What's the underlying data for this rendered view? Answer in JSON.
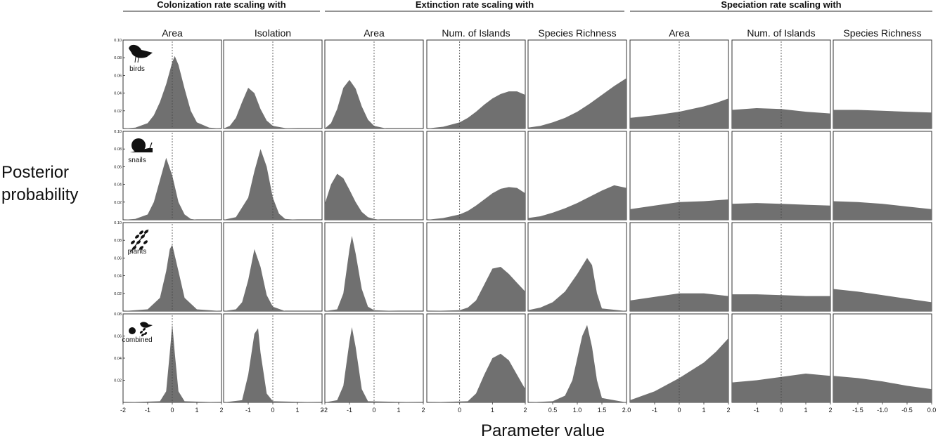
{
  "y_axis_label": [
    "Posterior",
    "probability"
  ],
  "x_axis_label": "Parameter value",
  "groups": [
    {
      "label": "Colonization rate scaling with",
      "columns": [
        0,
        1
      ]
    },
    {
      "label": "Extinction rate scaling with",
      "columns": [
        2,
        3,
        4
      ]
    },
    {
      "label": "Speciation rate scaling with",
      "columns": [
        5,
        6,
        7
      ]
    }
  ],
  "columns": [
    {
      "label": "Area",
      "xlim": [
        -2,
        2
      ],
      "ticks": [
        "-2",
        "-1",
        "0",
        "1",
        "2"
      ],
      "tick_values": [
        -2,
        -1,
        0,
        1,
        2
      ],
      "ref": 0
    },
    {
      "label": "Isolation",
      "xlim": [
        -2,
        2
      ],
      "ticks": [
        "-1",
        "0",
        "1",
        "2"
      ],
      "tick_values": [
        -1,
        0,
        1,
        2
      ],
      "ref": 0
    },
    {
      "label": "Area",
      "xlim": [
        -2,
        2
      ],
      "ticks": [
        "-2",
        "-1",
        "0",
        "1",
        "2"
      ],
      "tick_values": [
        -2,
        -1,
        0,
        1,
        2
      ],
      "ref": 0
    },
    {
      "label": "Num. of Islands",
      "xlim": [
        -1,
        2
      ],
      "ticks": [
        "0",
        "1",
        "2"
      ],
      "tick_values": [
        0,
        1,
        2
      ],
      "ref": 0
    },
    {
      "label": "Species Richness",
      "xlim": [
        0,
        2
      ],
      "ticks": [
        "0.5",
        "1.0",
        "1.5",
        "2.0"
      ],
      "tick_values": [
        0.5,
        1.0,
        1.5,
        2.0
      ],
      "ref": null
    },
    {
      "label": "Area",
      "xlim": [
        -2,
        2
      ],
      "ticks": [
        "-1",
        "0",
        "1",
        "2"
      ],
      "tick_values": [
        -1,
        0,
        1,
        2
      ],
      "ref": 0
    },
    {
      "label": "Num. of Islands",
      "xlim": [
        -2,
        2
      ],
      "ticks": [
        "-1",
        "0",
        "1",
        "2"
      ],
      "tick_values": [
        -1,
        0,
        1,
        2
      ],
      "ref": 0
    },
    {
      "label": "Species Richness",
      "xlim": [
        -2,
        0
      ],
      "ticks": [
        "-1.5",
        "-1.0",
        "-0.5",
        "0.0"
      ],
      "tick_values": [
        -1.5,
        -1.0,
        -0.5,
        0.0
      ],
      "ref": null
    }
  ],
  "rows": [
    {
      "label": "birds",
      "icon": "bird-icon",
      "yticks": [
        "0.10",
        "0.08",
        "0.06",
        "0.04",
        "0.02"
      ],
      "ytick_values": [
        0.1,
        0.08,
        0.06,
        0.04,
        0.02
      ],
      "ylim": [
        0,
        0.1
      ]
    },
    {
      "label": "snails",
      "icon": "snail-icon",
      "yticks": [
        "0.10",
        "0.08",
        "0.06",
        "0.04",
        "0.02"
      ],
      "ytick_values": [
        0.1,
        0.08,
        0.06,
        0.04,
        0.02
      ],
      "ylim": [
        0,
        0.1
      ]
    },
    {
      "label": "plants",
      "icon": "plant-icon",
      "yticks": [
        "0.10",
        "0.08",
        "0.06",
        "0.04",
        "0.02"
      ],
      "ytick_values": [
        0.1,
        0.08,
        0.06,
        0.04,
        0.02
      ],
      "ylim": [
        0,
        0.1
      ]
    },
    {
      "label": "combined",
      "icon": "combined-icon",
      "yticks": [
        "0.08",
        "0.06",
        "0.04",
        "0.02"
      ],
      "ytick_values": [
        0.08,
        0.06,
        0.04,
        0.02
      ],
      "ylim": [
        0,
        0.08
      ]
    }
  ],
  "chart_data": {
    "type": "area",
    "title": "",
    "xlabel": "Parameter value",
    "ylabel": "Posterior probability",
    "grid": false,
    "fill_color": "#707070",
    "reference_line": "dashed vertical line at 0",
    "panels": [
      {
        "row": 0,
        "col": 0,
        "x": [
          -2.0,
          -1.5,
          -1.0,
          -0.75,
          -0.5,
          -0.25,
          0.0,
          0.1,
          0.25,
          0.5,
          0.75,
          1.0,
          1.5,
          2.0
        ],
        "y": [
          0,
          0.001,
          0.006,
          0.015,
          0.03,
          0.05,
          0.075,
          0.082,
          0.072,
          0.045,
          0.02,
          0.007,
          0.001,
          0
        ]
      },
      {
        "row": 0,
        "col": 1,
        "x": [
          -2.0,
          -1.75,
          -1.5,
          -1.25,
          -1.0,
          -0.75,
          -0.5,
          -0.25,
          0.0,
          0.5,
          1.0,
          2.0
        ],
        "y": [
          0,
          0.003,
          0.012,
          0.03,
          0.046,
          0.04,
          0.022,
          0.009,
          0.003,
          0.0005,
          0,
          0
        ]
      },
      {
        "row": 0,
        "col": 2,
        "x": [
          -2.0,
          -1.75,
          -1.5,
          -1.25,
          -1.0,
          -0.75,
          -0.5,
          -0.25,
          0.0,
          0.5,
          1.0,
          2.0
        ],
        "y": [
          0,
          0.006,
          0.022,
          0.046,
          0.055,
          0.045,
          0.025,
          0.01,
          0.003,
          0,
          0,
          0
        ]
      },
      {
        "row": 0,
        "col": 3,
        "x": [
          -1.0,
          -0.5,
          0.0,
          0.25,
          0.5,
          0.75,
          1.0,
          1.25,
          1.5,
          1.75,
          2.0
        ],
        "y": [
          0,
          0.002,
          0.007,
          0.012,
          0.019,
          0.027,
          0.034,
          0.039,
          0.042,
          0.042,
          0.038
        ]
      },
      {
        "row": 0,
        "col": 4,
        "x": [
          0.0,
          0.25,
          0.5,
          0.75,
          1.0,
          1.25,
          1.5,
          1.75,
          2.0
        ],
        "y": [
          0.001,
          0.003,
          0.007,
          0.012,
          0.019,
          0.028,
          0.038,
          0.048,
          0.057
        ]
      },
      {
        "row": 0,
        "col": 5,
        "x": [
          -2.0,
          -1.0,
          0.0,
          1.0,
          1.5,
          2.0
        ],
        "y": [
          0.012,
          0.015,
          0.019,
          0.025,
          0.029,
          0.034
        ]
      },
      {
        "row": 0,
        "col": 6,
        "x": [
          -2.0,
          -1.0,
          0.0,
          1.0,
          2.0
        ],
        "y": [
          0.021,
          0.023,
          0.022,
          0.019,
          0.017
        ]
      },
      {
        "row": 0,
        "col": 7,
        "x": [
          -2.0,
          -1.5,
          -1.0,
          -0.5,
          0.0
        ],
        "y": [
          0.021,
          0.021,
          0.02,
          0.019,
          0.018
        ]
      },
      {
        "row": 1,
        "col": 0,
        "x": [
          -2.0,
          -1.5,
          -1.0,
          -0.75,
          -0.5,
          -0.25,
          0.0,
          0.25,
          0.5,
          0.75,
          1.0,
          2.0
        ],
        "y": [
          0,
          0.001,
          0.006,
          0.02,
          0.045,
          0.07,
          0.05,
          0.02,
          0.006,
          0.001,
          0,
          0
        ]
      },
      {
        "row": 1,
        "col": 1,
        "x": [
          -2.0,
          -1.5,
          -1.0,
          -0.75,
          -0.5,
          -0.25,
          0.0,
          0.25,
          0.5,
          1.0,
          2.0
        ],
        "y": [
          0,
          0.003,
          0.025,
          0.055,
          0.08,
          0.06,
          0.025,
          0.007,
          0.001,
          0,
          0
        ]
      },
      {
        "row": 1,
        "col": 2,
        "x": [
          -2.0,
          -1.75,
          -1.5,
          -1.25,
          -1.0,
          -0.75,
          -0.5,
          -0.25,
          0.0,
          0.25,
          0.5,
          1.0,
          2.0
        ],
        "y": [
          0.018,
          0.04,
          0.052,
          0.047,
          0.034,
          0.02,
          0.009,
          0.003,
          0.001,
          0,
          0,
          0,
          0
        ]
      },
      {
        "row": 1,
        "col": 3,
        "x": [
          -1.0,
          -0.5,
          0.0,
          0.25,
          0.5,
          0.75,
          1.0,
          1.25,
          1.5,
          1.75,
          2.0
        ],
        "y": [
          0,
          0.002,
          0.006,
          0.01,
          0.016,
          0.023,
          0.03,
          0.035,
          0.037,
          0.036,
          0.03
        ]
      },
      {
        "row": 1,
        "col": 4,
        "x": [
          0.0,
          0.25,
          0.5,
          0.75,
          1.0,
          1.25,
          1.5,
          1.75,
          2.0
        ],
        "y": [
          0.002,
          0.004,
          0.008,
          0.013,
          0.019,
          0.026,
          0.033,
          0.039,
          0.036
        ]
      },
      {
        "row": 1,
        "col": 5,
        "x": [
          -2.0,
          -1.0,
          0.0,
          1.0,
          2.0
        ],
        "y": [
          0.012,
          0.016,
          0.02,
          0.021,
          0.023
        ]
      },
      {
        "row": 1,
        "col": 6,
        "x": [
          -2.0,
          -1.0,
          0.0,
          1.0,
          2.0
        ],
        "y": [
          0.018,
          0.019,
          0.018,
          0.017,
          0.016
        ]
      },
      {
        "row": 1,
        "col": 7,
        "x": [
          -2.0,
          -1.5,
          -1.0,
          -0.5,
          0.0
        ],
        "y": [
          0.021,
          0.02,
          0.018,
          0.015,
          0.012
        ]
      },
      {
        "row": 2,
        "col": 0,
        "x": [
          -2.0,
          -1.0,
          -0.5,
          -0.25,
          -0.1,
          0.0,
          0.25,
          0.5,
          1.0,
          2.0
        ],
        "y": [
          0,
          0.002,
          0.015,
          0.045,
          0.07,
          0.075,
          0.045,
          0.015,
          0.002,
          0
        ]
      },
      {
        "row": 2,
        "col": 1,
        "x": [
          -2.0,
          -1.5,
          -1.25,
          -1.0,
          -0.75,
          -0.5,
          -0.25,
          0.0,
          0.5,
          1.0,
          2.0
        ],
        "y": [
          0,
          0.002,
          0.01,
          0.035,
          0.07,
          0.05,
          0.018,
          0.005,
          0,
          0,
          0
        ]
      },
      {
        "row": 2,
        "col": 2,
        "x": [
          -2.0,
          -1.5,
          -1.25,
          -1.0,
          -0.9,
          -0.75,
          -0.5,
          -0.25,
          0.0,
          1.0,
          2.0
        ],
        "y": [
          0,
          0.002,
          0.02,
          0.07,
          0.085,
          0.065,
          0.025,
          0.005,
          0.001,
          0,
          0
        ]
      },
      {
        "row": 2,
        "col": 3,
        "x": [
          -1.0,
          0.0,
          0.25,
          0.5,
          0.75,
          1.0,
          1.25,
          1.5,
          1.75,
          2.0
        ],
        "y": [
          0,
          0.001,
          0.004,
          0.012,
          0.03,
          0.048,
          0.05,
          0.042,
          0.032,
          0.022
        ]
      },
      {
        "row": 2,
        "col": 4,
        "x": [
          0.0,
          0.25,
          0.5,
          0.75,
          1.0,
          1.2,
          1.3,
          1.4,
          1.5,
          2.0
        ],
        "y": [
          0.001,
          0.004,
          0.01,
          0.022,
          0.042,
          0.06,
          0.052,
          0.02,
          0.003,
          0
        ]
      },
      {
        "row": 2,
        "col": 5,
        "x": [
          -2.0,
          -1.0,
          0.0,
          1.0,
          2.0
        ],
        "y": [
          0.012,
          0.016,
          0.02,
          0.02,
          0.017
        ]
      },
      {
        "row": 2,
        "col": 6,
        "x": [
          -2.0,
          -1.0,
          0.0,
          1.0,
          2.0
        ],
        "y": [
          0.019,
          0.019,
          0.018,
          0.017,
          0.017
        ]
      },
      {
        "row": 2,
        "col": 7,
        "x": [
          -2.0,
          -1.5,
          -1.0,
          -0.5,
          0.0
        ],
        "y": [
          0.025,
          0.022,
          0.018,
          0.014,
          0.01
        ]
      },
      {
        "row": 3,
        "col": 0,
        "x": [
          -2.0,
          -0.5,
          -0.25,
          -0.1,
          0.0,
          0.1,
          0.25,
          0.5,
          2.0
        ],
        "y": [
          0,
          0.001,
          0.01,
          0.045,
          0.071,
          0.045,
          0.01,
          0.001,
          0
        ]
      },
      {
        "row": 3,
        "col": 1,
        "x": [
          -2.0,
          -1.25,
          -1.0,
          -0.75,
          -0.6,
          -0.5,
          -0.25,
          0.0,
          2.0
        ],
        "y": [
          0,
          0.002,
          0.025,
          0.062,
          0.067,
          0.045,
          0.008,
          0.001,
          0
        ]
      },
      {
        "row": 3,
        "col": 2,
        "x": [
          -2.0,
          -1.5,
          -1.25,
          -1.0,
          -0.9,
          -0.75,
          -0.5,
          -0.25,
          2.0
        ],
        "y": [
          0,
          0.002,
          0.015,
          0.055,
          0.068,
          0.05,
          0.012,
          0.001,
          0
        ]
      },
      {
        "row": 3,
        "col": 3,
        "x": [
          -1.0,
          0.25,
          0.5,
          0.75,
          1.0,
          1.25,
          1.5,
          1.75,
          2.0
        ],
        "y": [
          0,
          0.001,
          0.008,
          0.025,
          0.04,
          0.044,
          0.038,
          0.025,
          0.012
        ]
      },
      {
        "row": 3,
        "col": 4,
        "x": [
          0.0,
          0.5,
          0.75,
          0.9,
          1.0,
          1.1,
          1.2,
          1.3,
          1.4,
          1.5,
          2.0
        ],
        "y": [
          0,
          0.001,
          0.006,
          0.02,
          0.04,
          0.06,
          0.07,
          0.05,
          0.02,
          0.004,
          0
        ]
      },
      {
        "row": 3,
        "col": 5,
        "x": [
          -2.0,
          -1.0,
          0.0,
          1.0,
          1.5,
          2.0
        ],
        "y": [
          0.002,
          0.01,
          0.022,
          0.036,
          0.046,
          0.058
        ]
      },
      {
        "row": 3,
        "col": 6,
        "x": [
          -2.0,
          -1.0,
          0.0,
          1.0,
          1.5,
          2.0
        ],
        "y": [
          0.018,
          0.02,
          0.023,
          0.026,
          0.025,
          0.024
        ]
      },
      {
        "row": 3,
        "col": 7,
        "x": [
          -2.0,
          -1.5,
          -1.0,
          -0.5,
          0.0
        ],
        "y": [
          0.024,
          0.022,
          0.019,
          0.015,
          0.012
        ]
      }
    ]
  }
}
